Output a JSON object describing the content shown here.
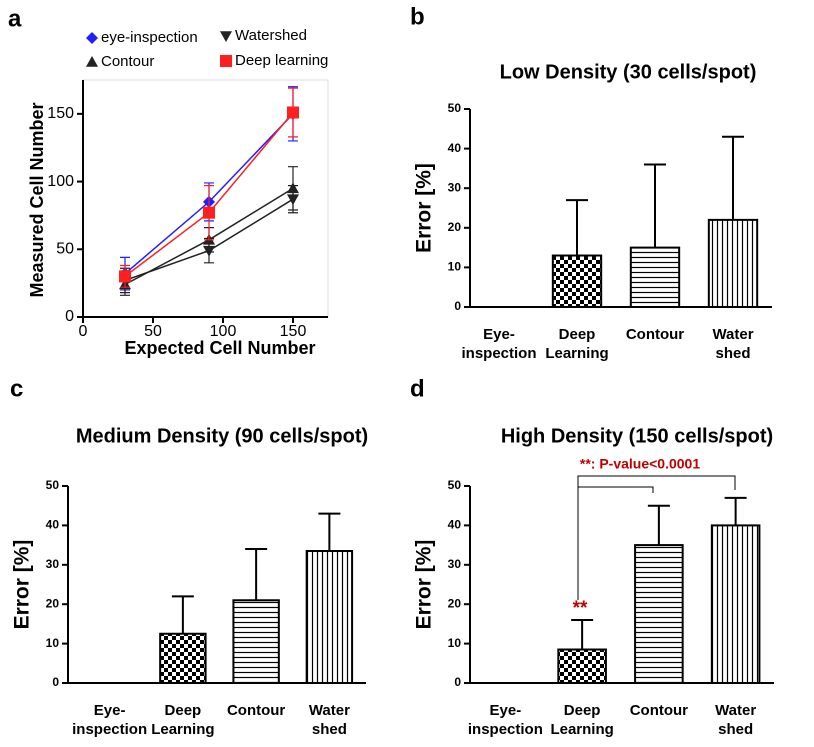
{
  "chart_data": [
    {
      "type": "line",
      "label": "a",
      "xlabel": "Expected Cell Number",
      "ylabel": "Measured Cell Number",
      "x": [
        30,
        90,
        150
      ],
      "xlim": [
        0,
        175
      ],
      "ylim": [
        0,
        175
      ],
      "xticks": [
        0,
        50,
        100,
        150
      ],
      "yticks": [
        0,
        50,
        100,
        150
      ],
      "series": [
        {
          "name": "eye-inspection",
          "color": "#1f1fff",
          "marker": "diamond",
          "values": [
            32,
            85,
            150
          ],
          "errors": [
            12,
            14,
            20
          ]
        },
        {
          "name": "Watershed",
          "color": "#222222",
          "marker": "triangle-down",
          "values": [
            27,
            49,
            87
          ],
          "errors": [
            9,
            9,
            10
          ]
        },
        {
          "name": "Contour",
          "color": "#222222",
          "marker": "triangle",
          "values": [
            24,
            57,
            95
          ],
          "errors": [
            8,
            9,
            16
          ]
        },
        {
          "name": "Deep learning",
          "color": "#ff1f1f",
          "marker": "square",
          "values": [
            30,
            77,
            151
          ],
          "errors": [
            8,
            20,
            18
          ]
        }
      ]
    },
    {
      "type": "bar",
      "label": "b",
      "title": "Low Density (30 cells/spot)",
      "ylabel": "Error [%]",
      "categories": [
        "Eye-\ninspection",
        "Deep\nLearning",
        "Contour",
        "Water\nshed"
      ],
      "values": [
        0,
        13,
        15,
        22
      ],
      "errors": [
        0,
        14,
        21,
        21
      ],
      "color": "#000000",
      "patterns": [
        "none",
        "checker",
        "hlines",
        "vlines"
      ],
      "ylim": [
        0,
        50
      ],
      "yticks": [
        0,
        10,
        20,
        30,
        40,
        50
      ]
    },
    {
      "type": "bar",
      "label": "c",
      "title": "Medium Density (90 cells/spot)",
      "ylabel": "Error [%]",
      "categories": [
        "Eye-\ninspection",
        "Deep\nLearning",
        "Contour",
        "Water\nshed"
      ],
      "values": [
        0,
        12.5,
        21,
        33.5
      ],
      "errors": [
        0,
        9.5,
        13,
        9.5
      ],
      "color": "#000000",
      "patterns": [
        "none",
        "checker",
        "hlines",
        "vlines"
      ],
      "ylim": [
        0,
        50
      ],
      "yticks": [
        0,
        10,
        20,
        30,
        40,
        50
      ]
    },
    {
      "type": "bar",
      "label": "d",
      "title": "High Density (150 cells/spot)",
      "ylabel": "Error [%]",
      "categories": [
        "Eye-\ninspection",
        "Deep\nLearning",
        "Contour",
        "Water\nshed"
      ],
      "values": [
        0,
        8.5,
        35,
        40
      ],
      "errors": [
        0,
        7.5,
        10,
        7
      ],
      "color": "#000000",
      "patterns": [
        "none",
        "checker",
        "hlines",
        "vlines"
      ],
      "ylim": [
        0,
        50
      ],
      "yticks": [
        0,
        10,
        20,
        30,
        40,
        50
      ],
      "annotations": [
        "**: P-value<0.0001",
        "**"
      ]
    }
  ]
}
